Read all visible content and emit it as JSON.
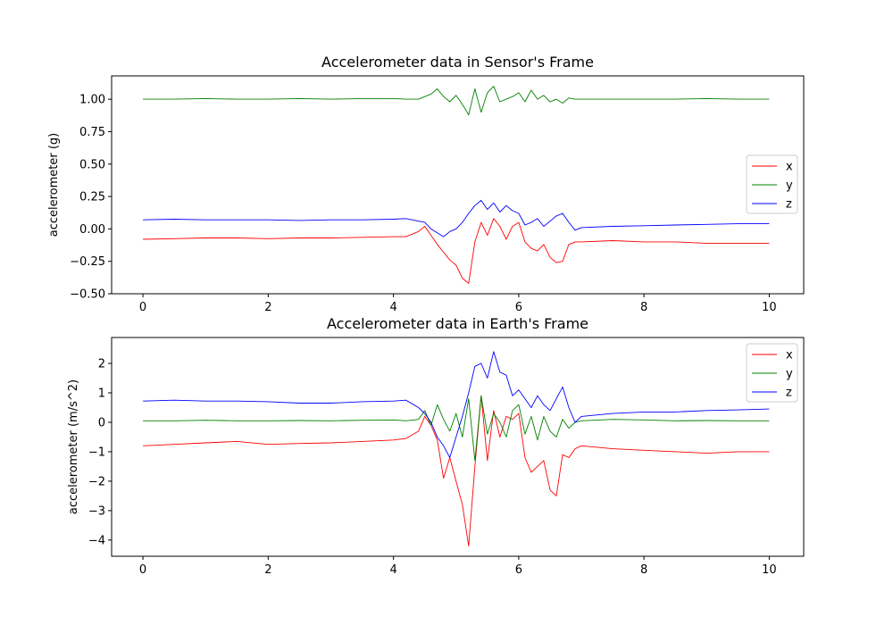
{
  "chart_data": [
    {
      "type": "line",
      "title": "Accelerometer data in Sensor's Frame",
      "xlabel": "",
      "ylabel": "accelerometer (g)",
      "xlim": [
        -0.5,
        10.55
      ],
      "ylim": [
        -0.5,
        1.18
      ],
      "xticks": [
        0,
        2,
        4,
        6,
        8,
        10
      ],
      "yticks": [
        -0.5,
        -0.25,
        0.0,
        0.25,
        0.5,
        0.75,
        1.0
      ],
      "ytick_labels": [
        "−0.50",
        "−0.25",
        "0.00",
        "0.25",
        "0.50",
        "0.75",
        "1.00"
      ],
      "legend": "center-right",
      "grid": false,
      "x": [
        0.0,
        0.5,
        1.0,
        1.5,
        2.0,
        2.5,
        3.0,
        3.5,
        4.0,
        4.2,
        4.4,
        4.5,
        4.6,
        4.7,
        4.8,
        4.9,
        5.0,
        5.1,
        5.2,
        5.3,
        5.4,
        5.5,
        5.6,
        5.7,
        5.8,
        5.9,
        6.0,
        6.1,
        6.2,
        6.3,
        6.4,
        6.5,
        6.6,
        6.7,
        6.8,
        6.9,
        7.0,
        7.5,
        8.0,
        8.5,
        9.0,
        9.5,
        10.0
      ],
      "series": [
        {
          "name": "x",
          "color": "#ff0000",
          "values": [
            -0.08,
            -0.075,
            -0.07,
            -0.07,
            -0.075,
            -0.07,
            -0.07,
            -0.065,
            -0.06,
            -0.06,
            -0.02,
            0.02,
            -0.05,
            -0.12,
            -0.18,
            -0.24,
            -0.28,
            -0.38,
            -0.42,
            -0.1,
            0.05,
            -0.05,
            0.08,
            0.02,
            -0.08,
            0.02,
            0.05,
            -0.1,
            -0.15,
            -0.17,
            -0.12,
            -0.22,
            -0.26,
            -0.25,
            -0.12,
            -0.1,
            -0.1,
            -0.09,
            -0.1,
            -0.1,
            -0.11,
            -0.11,
            -0.11
          ]
        },
        {
          "name": "y",
          "color": "#008000",
          "values": [
            1.0,
            1.0,
            1.005,
            1.0,
            1.0,
            1.005,
            1.0,
            1.005,
            1.005,
            1.0,
            1.0,
            1.02,
            1.04,
            1.08,
            1.02,
            0.98,
            1.03,
            0.96,
            0.88,
            1.08,
            0.9,
            1.05,
            1.1,
            0.98,
            1.0,
            1.02,
            1.05,
            0.98,
            1.07,
            1.0,
            1.03,
            0.98,
            1.0,
            0.97,
            1.01,
            1.0,
            1.0,
            1.0,
            1.0,
            1.0,
            1.005,
            1.0,
            1.0
          ]
        },
        {
          "name": "z",
          "color": "#0000ff",
          "values": [
            0.07,
            0.075,
            0.07,
            0.07,
            0.07,
            0.065,
            0.07,
            0.07,
            0.075,
            0.08,
            0.06,
            0.05,
            0.0,
            -0.03,
            -0.06,
            -0.02,
            0.0,
            0.05,
            0.12,
            0.18,
            0.22,
            0.15,
            0.2,
            0.13,
            0.18,
            0.14,
            0.12,
            0.03,
            0.05,
            0.08,
            0.02,
            0.06,
            0.1,
            0.12,
            0.05,
            -0.01,
            0.01,
            0.02,
            0.025,
            0.03,
            0.035,
            0.04,
            0.04
          ]
        }
      ]
    },
    {
      "type": "line",
      "title": "Accelerometer data in Earth's Frame",
      "xlabel": "",
      "ylabel": "accelerometer (m/s^2)",
      "xlim": [
        -0.5,
        10.55
      ],
      "ylim": [
        -4.55,
        2.88
      ],
      "xticks": [
        0,
        2,
        4,
        6,
        8,
        10
      ],
      "yticks": [
        -4,
        -3,
        -2,
        -1,
        0,
        1,
        2
      ],
      "ytick_labels": [
        "−4",
        "−3",
        "−2",
        "−1",
        "0",
        "1",
        "2"
      ],
      "legend": "top-right",
      "grid": false,
      "x": [
        0.0,
        0.5,
        1.0,
        1.5,
        2.0,
        2.5,
        3.0,
        3.5,
        4.0,
        4.2,
        4.4,
        4.5,
        4.6,
        4.7,
        4.8,
        4.9,
        5.0,
        5.1,
        5.2,
        5.3,
        5.4,
        5.5,
        5.6,
        5.7,
        5.8,
        5.9,
        6.0,
        6.1,
        6.2,
        6.3,
        6.4,
        6.5,
        6.6,
        6.7,
        6.8,
        6.9,
        7.0,
        7.5,
        8.0,
        8.5,
        9.0,
        9.5,
        10.0
      ],
      "series": [
        {
          "name": "x",
          "color": "#ff0000",
          "values": [
            -0.8,
            -0.75,
            -0.7,
            -0.65,
            -0.75,
            -0.72,
            -0.7,
            -0.65,
            -0.6,
            -0.55,
            -0.3,
            0.2,
            -0.1,
            -0.6,
            -1.9,
            -1.2,
            -2.0,
            -2.8,
            -4.2,
            -1.5,
            0.9,
            -1.3,
            0.4,
            -0.5,
            0.2,
            0.1,
            0.3,
            -1.2,
            -1.7,
            -1.5,
            -1.3,
            -2.3,
            -2.5,
            -1.1,
            -1.2,
            -0.9,
            -0.8,
            -0.9,
            -0.95,
            -1.0,
            -1.05,
            -1.0,
            -1.0
          ]
        },
        {
          "name": "y",
          "color": "#008000",
          "values": [
            0.05,
            0.05,
            0.07,
            0.05,
            0.05,
            0.06,
            0.05,
            0.07,
            0.08,
            0.05,
            0.1,
            0.4,
            -0.1,
            0.6,
            0.1,
            -0.3,
            0.3,
            -0.5,
            0.8,
            -1.3,
            0.9,
            -0.4,
            0.3,
            0.0,
            -0.5,
            0.4,
            0.6,
            -0.4,
            0.2,
            -0.6,
            0.2,
            -0.3,
            -0.5,
            0.1,
            -0.2,
            0.0,
            0.05,
            0.1,
            0.08,
            0.05,
            0.06,
            0.05,
            0.05
          ]
        },
        {
          "name": "z",
          "color": "#0000ff",
          "values": [
            0.72,
            0.75,
            0.72,
            0.72,
            0.7,
            0.65,
            0.65,
            0.7,
            0.72,
            0.75,
            0.5,
            0.3,
            0.0,
            -0.5,
            -0.8,
            -1.2,
            -0.5,
            0.2,
            1.0,
            1.9,
            2.0,
            1.5,
            2.4,
            1.7,
            1.6,
            0.9,
            1.1,
            0.8,
            0.5,
            0.9,
            0.6,
            0.4,
            0.8,
            1.2,
            0.5,
            0.0,
            0.2,
            0.3,
            0.35,
            0.35,
            0.4,
            0.42,
            0.45
          ]
        }
      ]
    }
  ]
}
